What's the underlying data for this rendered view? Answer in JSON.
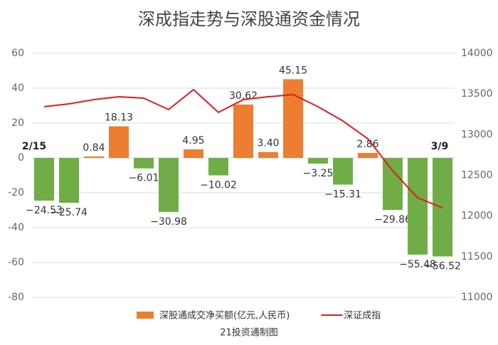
{
  "chart_data": {
    "type": "bar",
    "title": "深成指走势与深股通资金情况",
    "source": "21投资通制图",
    "categories": [
      "2/15",
      null,
      null,
      null,
      null,
      null,
      null,
      null,
      null,
      null,
      null,
      null,
      null,
      null,
      null,
      null,
      "3/9"
    ],
    "series": [
      {
        "name": "深股通成交净买额(亿元,人民币)",
        "type": "bar",
        "color": "#ed7d31",
        "negative_color": "#70ad47",
        "values": [
          -24.53,
          -25.74,
          0.84,
          18.13,
          -6.01,
          -30.98,
          4.95,
          -10.02,
          30.62,
          3.4,
          45.15,
          -3.25,
          -15.31,
          2.86,
          -29.86,
          -55.48,
          -56.52
        ],
        "value_labels": [
          "−24.53",
          "−25.74",
          "0.84",
          "18.13",
          "−6.01",
          "−30.98",
          "4.95",
          "−10.02",
          "30.62",
          "3.40",
          "45.15",
          "−3.25",
          "−15.31",
          "2.86",
          "−29.86",
          "−55.48",
          "−56.52"
        ]
      },
      {
        "name": "深证成指",
        "type": "line",
        "axis": "y2",
        "color": "#e31a1c",
        "values": [
          13344,
          13379,
          13431,
          13466,
          13449,
          13309,
          13554,
          13274,
          13431,
          13466,
          13493,
          13344,
          13169,
          12950,
          12556,
          12224,
          12101
        ]
      }
    ],
    "ylim": [
      -80,
      60
    ],
    "yticks": [
      -80,
      -60,
      -40,
      -20,
      0,
      20,
      40,
      60
    ],
    "y2lim": [
      11000,
      14000
    ],
    "y2ticks": [
      11000,
      11500,
      12000,
      12500,
      13000,
      13500,
      14000
    ],
    "grid": true
  }
}
